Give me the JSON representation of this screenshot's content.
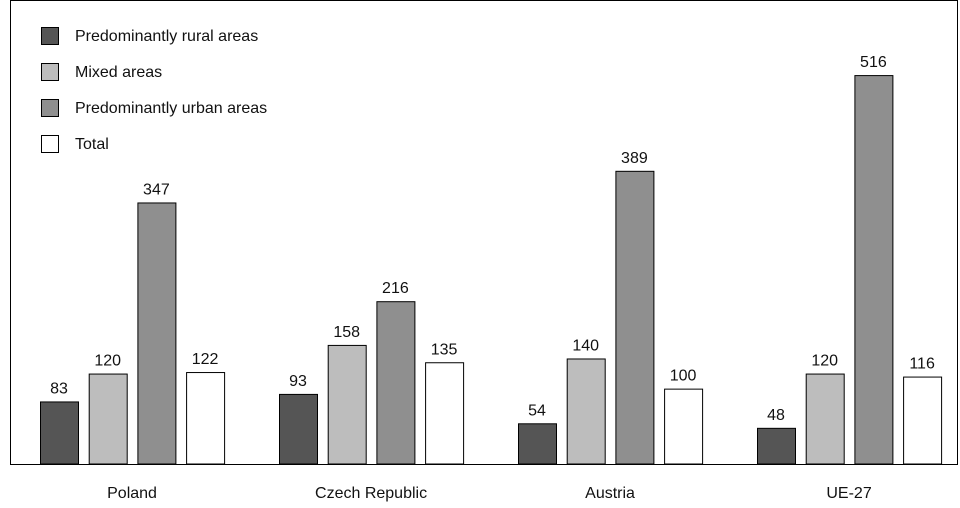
{
  "chart_data": {
    "type": "bar",
    "categories": [
      "Poland",
      "Czech Republic",
      "Austria",
      "UE-27"
    ],
    "series": [
      {
        "name": "Predominantly rural areas",
        "values": [
          83,
          93,
          54,
          48
        ],
        "color": "#555555"
      },
      {
        "name": "Mixed areas",
        "values": [
          120,
          158,
          140,
          120
        ],
        "color": "#bdbdbd"
      },
      {
        "name": "Predominantly urban areas",
        "values": [
          347,
          216,
          389,
          516
        ],
        "color": "#8f8f8f"
      },
      {
        "name": "Total",
        "values": [
          122,
          135,
          100,
          116
        ],
        "color": "#ffffff"
      }
    ],
    "ylim": [
      0,
      540
    ],
    "grid": false,
    "legend": "top-left",
    "title": "",
    "xlabel": "",
    "ylabel": ""
  }
}
